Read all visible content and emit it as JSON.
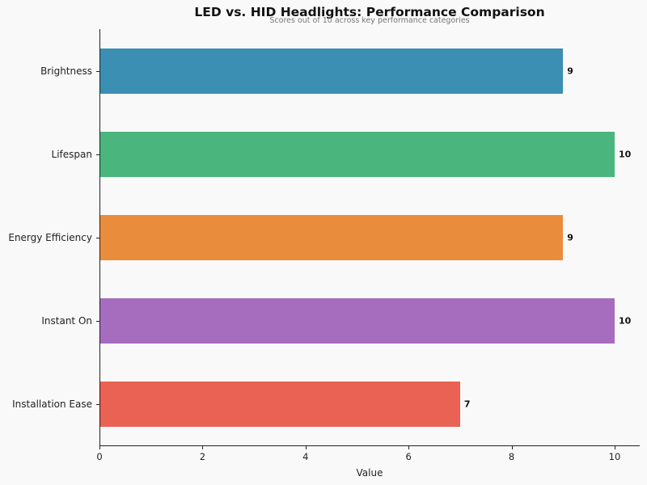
{
  "chart_data": {
    "type": "bar",
    "orientation": "horizontal",
    "title": "LED vs. HID Headlights: Performance Comparison",
    "subtitle": "Scores out of 10 across key performance categories",
    "xlabel": "Value",
    "ylabel": "",
    "categories": [
      "Brightness",
      "Lifespan",
      "Energy Efficiency",
      "Instant On",
      "Installation Ease"
    ],
    "values": [
      9,
      10,
      9,
      10,
      7
    ],
    "value_labels": [
      "9",
      "10",
      "9",
      "10",
      "7"
    ],
    "colors": [
      "#3a8fb2",
      "#4bb57e",
      "#e98d3d",
      "#a66cbd",
      "#e96254"
    ],
    "xlim": [
      0,
      10.5
    ],
    "xticks": [
      "0",
      "2",
      "4",
      "6",
      "8",
      "10"
    ],
    "grid": false,
    "legend": null
  }
}
